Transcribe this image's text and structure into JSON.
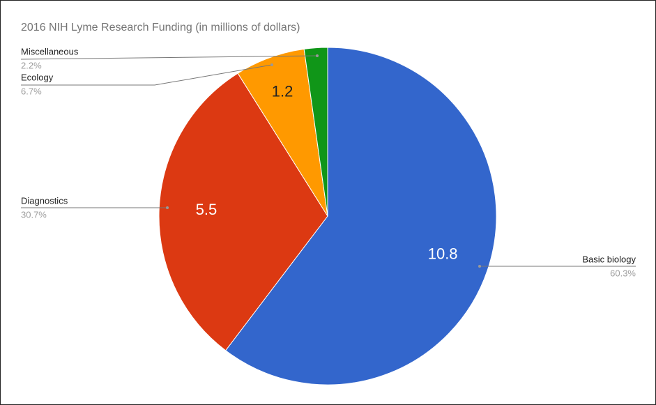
{
  "chart_data": {
    "type": "pie",
    "title": "2016 NIH Lyme Research Funding (in millions of dollars)",
    "categories": [
      "Basic biology",
      "Diagnostics",
      "Ecology",
      "Miscellaneous"
    ],
    "values": [
      10.8,
      5.5,
      1.2,
      0.4
    ],
    "value_labels": [
      "10.8",
      "5.5",
      "1.2",
      null
    ],
    "percent_labels": [
      "60.3%",
      "30.7%",
      "6.7%",
      "2.2%"
    ],
    "colors": [
      "#3366cc",
      "#dc3912",
      "#ff9900",
      "#109618"
    ]
  }
}
